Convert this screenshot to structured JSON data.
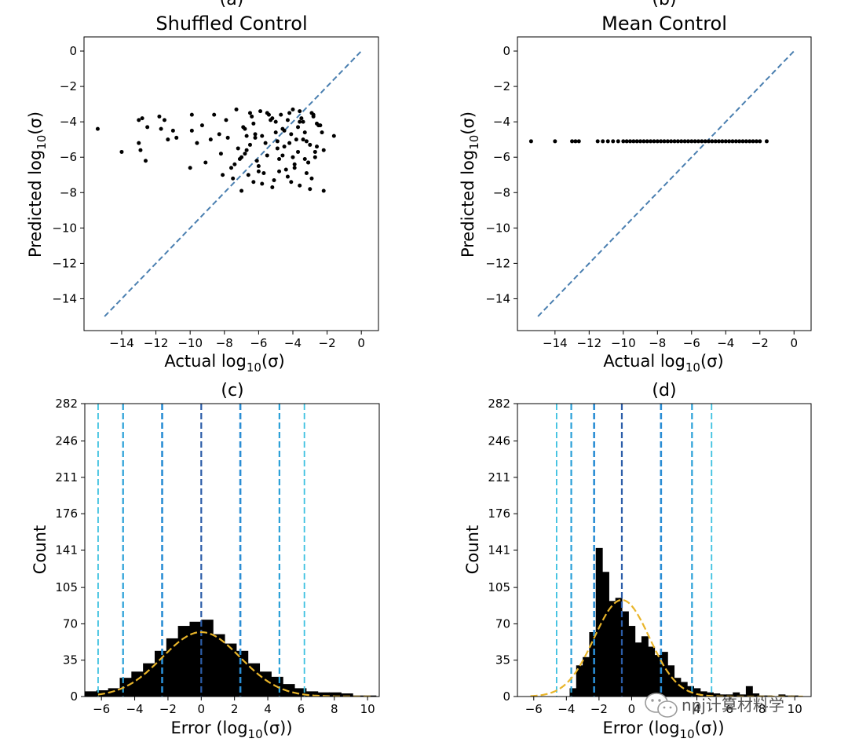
{
  "watermark": {
    "text": "npj计算材料学",
    "icon": "wechat-icon"
  },
  "chart_data": [
    {
      "panel": "(a)",
      "title": "Shuffled Control",
      "type": "scatter",
      "xlabel": "Actual log10(σ)",
      "ylabel": "Predicted log10(σ)",
      "xlim": [
        -16.2,
        1.0
      ],
      "ylim": [
        -15.8,
        0.8
      ],
      "xticks": [
        -14,
        -12,
        -10,
        -8,
        -6,
        -4,
        -2,
        0
      ],
      "yticks": [
        -14,
        -12,
        -10,
        -8,
        -6,
        -4,
        -2,
        0
      ],
      "x": [
        -15.4,
        -14,
        -13,
        -13,
        -12.9,
        -12.8,
        -12.6,
        -12.5,
        -11.8,
        -11.7,
        -11.5,
        -11.3,
        -11,
        -10.8,
        -10,
        -9.9,
        -9.9,
        -9.6,
        -9.3,
        -9.1,
        -8.8,
        -8.6,
        -8.3,
        -8.2,
        -7.9,
        -7.5,
        -7.3,
        -7.1,
        -7,
        -6.8,
        -6.7,
        -6.5,
        -6.3,
        -6.2,
        -6,
        -5.9,
        -5.6,
        -5.2,
        -5,
        -4.8,
        -4.7,
        -4.5,
        -4.3,
        -4.1,
        -4,
        -3.9,
        -3.8,
        -3.6,
        -3.5,
        -3.3,
        -3.2,
        -3,
        -2.9,
        -2.7,
        -2.4,
        -2.2,
        -1.6,
        -7.6,
        -7.2,
        -6.9,
        -6.6,
        -6.4,
        -6.1,
        -5.8,
        -5.5,
        -5.3,
        -5.1,
        -4.9,
        -4.6,
        -4.4,
        -4.2,
        -3.7,
        -3.4,
        -3.1,
        -2.8,
        -2.6,
        -2.3,
        -8.1,
        -7.8,
        -7.4,
        -6.8,
        -6.3,
        -5.7,
        -5.4,
        -4.9,
        -4.5,
        -4,
        -3.6,
        -3.2,
        -2.9,
        -2.5,
        -6.7,
        -6,
        -5.2,
        -4.6,
        -4.1,
        -3.7,
        -3.3,
        -2.8,
        -2.2,
        -6.5,
        -5.8,
        -5,
        -4.3,
        -3.9,
        -3.4,
        -3,
        -2.6,
        -7,
        -6.2,
        -5.5,
        -4.8,
        -4.2,
        -3.6,
        -3.1,
        -2.7
      ],
      "y": [
        -4.4,
        -5.7,
        -3.9,
        -5.2,
        -5.6,
        -3.8,
        -6.2,
        -4.3,
        -3.7,
        -4.4,
        -3.9,
        -5.0,
        -4.5,
        -4.9,
        -6.6,
        -3.6,
        -4.5,
        -5.2,
        -4.2,
        -6.3,
        -5.0,
        -3.6,
        -4.7,
        -5.8,
        -3.9,
        -7.2,
        -3.3,
        -6.1,
        -7.9,
        -4.4,
        -5.6,
        -3.5,
        -7.4,
        -4.9,
        -6.8,
        -3.4,
        -5.2,
        -7.7,
        -4.0,
        -6.1,
        -3.6,
        -5.4,
        -7.1,
        -4.7,
        -3.3,
        -6.4,
        -5.0,
        -7.6,
        -3.8,
        -4.6,
        -6.9,
        -5.3,
        -3.5,
        -6.0,
        -4.2,
        -7.9,
        -4.8,
        -6.6,
        -5.5,
        -4.3,
        -7.0,
        -3.7,
        -6.2,
        -4.8,
        -5.9,
        -3.9,
        -7.3,
        -5.1,
        -4.4,
        -6.7,
        -3.5,
        -5.7,
        -4.0,
        -6.3,
        -3.7,
        -5.4,
        -4.6,
        -7.0,
        -4.9,
        -6.4,
        -5.8,
        -4.1,
        -6.9,
        -3.6,
        -5.5,
        -4.5,
        -6.0,
        -3.4,
        -5.1,
        -7.2,
        -4.2,
        -4.8,
        -6.5,
        -3.8,
        -5.9,
        -7.4,
        -4.3,
        -6.1,
        -3.6,
        -5.6,
        -5.3,
        -7.5,
        -4.6,
        -3.9,
        -6.6,
        -5.0,
        -7.8,
        -4.1,
        -6.0,
        -4.7,
        -3.5,
        -6.8,
        -5.2,
        -4.0,
        -6.3,
        -5.7
      ],
      "diagonal": [
        [
          -15,
          -15
        ],
        [
          0,
          0
        ]
      ]
    },
    {
      "panel": "(b)",
      "title": "Mean Control",
      "type": "scatter",
      "xlabel": "Actual log10(σ)",
      "ylabel": "Predicted log10(σ)",
      "xlim": [
        -16.2,
        1.0
      ],
      "ylim": [
        -15.8,
        0.8
      ],
      "xticks": [
        -14,
        -12,
        -10,
        -8,
        -6,
        -4,
        -2,
        0
      ],
      "yticks": [
        -14,
        -12,
        -10,
        -8,
        -6,
        -4,
        -2,
        0
      ],
      "constant_y": -5.1,
      "x": [
        -15.4,
        -14,
        -13,
        -12.8,
        -12.6,
        -11.5,
        -11.2,
        -10.9,
        -10.6,
        -10.3,
        -10,
        -9.8,
        -9.6,
        -9.4,
        -9.2,
        -9,
        -8.8,
        -8.6,
        -8.4,
        -8.2,
        -8,
        -7.8,
        -7.6,
        -7.4,
        -7.2,
        -7,
        -6.8,
        -6.6,
        -6.4,
        -6.2,
        -6,
        -5.8,
        -5.6,
        -5.4,
        -5.2,
        -5,
        -4.8,
        -4.6,
        -4.4,
        -4.2,
        -4,
        -3.8,
        -3.6,
        -3.4,
        -3.2,
        -3,
        -2.8,
        -2.6,
        -2.4,
        -2.2,
        -2,
        -1.6
      ],
      "diagonal": [
        [
          -15,
          -15
        ],
        [
          0,
          0
        ]
      ]
    },
    {
      "panel": "(c)",
      "title": "",
      "type": "bar",
      "xlabel": "Error (log10(σ))",
      "ylabel": "Count",
      "xlim": [
        -7,
        10.7
      ],
      "ylim": [
        0,
        282
      ],
      "xticks": [
        -6,
        -4,
        -2,
        0,
        2,
        4,
        6,
        8,
        10
      ],
      "yticks": [
        0,
        35,
        70,
        105,
        141,
        176,
        211,
        246,
        282
      ],
      "bin_edges": [
        -7.0,
        -6.3,
        -5.6,
        -4.9,
        -4.2,
        -3.5,
        -2.8,
        -2.1,
        -1.4,
        -0.7,
        0.0,
        0.7,
        1.4,
        2.1,
        2.8,
        3.5,
        4.2,
        4.9,
        5.6,
        6.3,
        7.0,
        7.7,
        8.4,
        9.1,
        9.8,
        10.5
      ],
      "counts": [
        5,
        6,
        8,
        18,
        24,
        32,
        44,
        56,
        68,
        72,
        74,
        60,
        51,
        44,
        32,
        24,
        19,
        12,
        8,
        5,
        4,
        4,
        3,
        1,
        1
      ],
      "fit": {
        "mean": 0.0,
        "std": 2.35,
        "peak": 62
      },
      "vlines": [
        {
          "x": 0,
          "color": "#2c5da8",
          "width": 2.2
        },
        {
          "x": -2.35,
          "color": "#2a8dd4",
          "width": 2.6
        },
        {
          "x": 2.35,
          "color": "#2a8dd4",
          "width": 2.6
        },
        {
          "x": -4.7,
          "color": "#2aa0d8",
          "width": 2.2
        },
        {
          "x": 4.7,
          "color": "#2aa0d8",
          "width": 2.2
        },
        {
          "x": -6.2,
          "color": "#3cc0e0",
          "width": 1.8
        },
        {
          "x": 6.2,
          "color": "#3cc0e0",
          "width": 1.8
        }
      ]
    },
    {
      "panel": "(d)",
      "title": "",
      "type": "bar",
      "xlabel": "Error (log10(σ))",
      "ylabel": "Count",
      "xlim": [
        -7,
        11
      ],
      "ylim": [
        0,
        282
      ],
      "xticks": [
        -6,
        -4,
        -2,
        0,
        2,
        4,
        6,
        8,
        10
      ],
      "yticks": [
        0,
        35,
        70,
        105,
        141,
        176,
        211,
        246,
        282
      ],
      "bin_edges": [
        -3.8,
        -3.4,
        -3.0,
        -2.6,
        -2.2,
        -1.8,
        -1.4,
        -1.0,
        -0.6,
        -0.2,
        0.2,
        0.6,
        1.0,
        1.4,
        1.8,
        2.2,
        2.6,
        3.0,
        3.4,
        3.8,
        4.2,
        4.6,
        5.0,
        5.4,
        5.8,
        6.2,
        6.6,
        7.0,
        7.4,
        7.8,
        8.2,
        8.6,
        9.0,
        9.4,
        9.8,
        10.2
      ],
      "counts": [
        8,
        30,
        38,
        62,
        143,
        120,
        92,
        95,
        82,
        68,
        52,
        58,
        48,
        40,
        43,
        30,
        18,
        14,
        10,
        8,
        5,
        4,
        3,
        2,
        2,
        4,
        2,
        10,
        3,
        1,
        1,
        0,
        2,
        1,
        1
      ],
      "fit": {
        "mean": -0.6,
        "std": 1.7,
        "peak": 93
      },
      "vlines": [
        {
          "x": -0.6,
          "color": "#2c5da8",
          "width": 2.2
        },
        {
          "x": -2.3,
          "color": "#2a8dd4",
          "width": 2.6
        },
        {
          "x": 1.8,
          "color": "#2a8dd4",
          "width": 2.6
        },
        {
          "x": -3.7,
          "color": "#2aa0d8",
          "width": 2.2
        },
        {
          "x": 3.7,
          "color": "#2aa0d8",
          "width": 2.2
        },
        {
          "x": -4.6,
          "color": "#3cc0e0",
          "width": 1.8
        },
        {
          "x": 4.9,
          "color": "#3cc0e0",
          "width": 1.8
        }
      ]
    }
  ]
}
